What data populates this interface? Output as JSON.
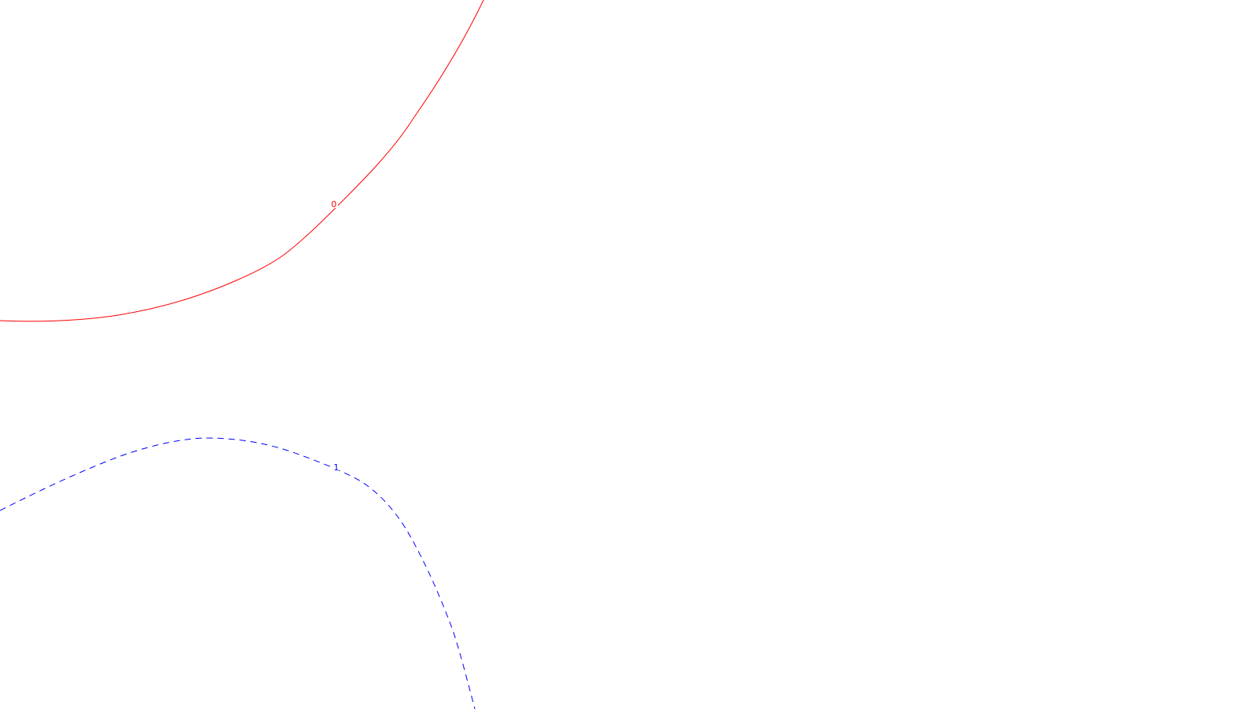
{
  "contours": [
    {
      "label": "0",
      "color": "#ff0000",
      "style": "solid"
    },
    {
      "label": "1",
      "color": "#0000ff",
      "style": "dashed"
    }
  ]
}
